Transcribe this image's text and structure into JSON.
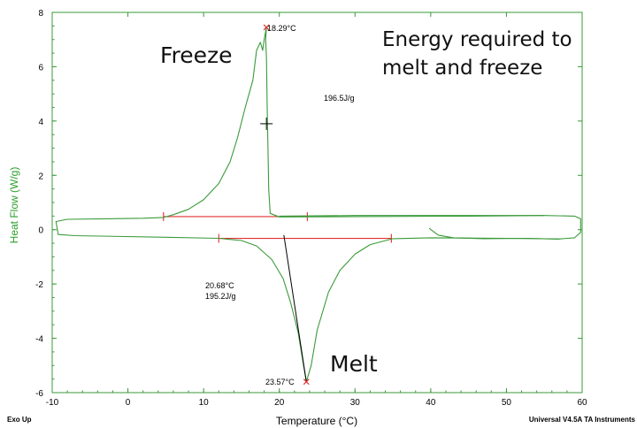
{
  "chart_data": {
    "type": "line",
    "xlabel": "Temperature (°C)",
    "ylabel": "Heat Flow (W/g)",
    "xlim": [
      -10,
      60
    ],
    "ylim": [
      -6,
      8
    ],
    "x_ticks": [
      "-10",
      "0",
      "10",
      "20",
      "30",
      "40",
      "50",
      "60"
    ],
    "y_ticks": [
      "-6",
      "-4",
      "-2",
      "0",
      "2",
      "4",
      "6",
      "8"
    ],
    "grid": false,
    "colors": {
      "curve": "#3a9a3a",
      "axis": "#3a9a3a",
      "baseline": "#e03030",
      "tangent": "#000000"
    },
    "series": [
      {
        "segment": "cooling",
        "x": [
          55,
          45,
          30,
          20,
          18.8,
          18.6,
          18.5,
          18.4,
          18.3,
          18.2,
          18.29,
          18.0,
          17.8,
          17.5,
          17.0,
          16.5,
          15.5,
          14.5,
          13.5,
          12.0,
          10.0,
          8.0,
          6.0,
          4.7,
          2.0,
          -8.0,
          -9.5,
          -9.2,
          -7.0,
          5.0,
          12.0
        ],
        "y": [
          0.52,
          0.5,
          0.48,
          0.47,
          0.6,
          1.5,
          3.0,
          4.5,
          6.3,
          7.0,
          7.45,
          7.0,
          6.6,
          6.9,
          6.6,
          5.5,
          4.5,
          3.4,
          2.5,
          1.7,
          1.1,
          0.75,
          0.55,
          0.45,
          0.42,
          0.38,
          0.3,
          -0.18,
          -0.22,
          -0.28,
          -0.32
        ]
      },
      {
        "segment": "heating",
        "x": [
          12.0,
          15.0,
          17.0,
          19.0,
          20.5,
          21.5,
          22.5,
          23.2,
          23.57,
          24.2,
          25.0,
          26.5,
          28.0,
          30.0,
          32.0,
          35.0,
          40.0,
          50.0,
          57.0,
          59.0,
          59.8,
          59.8,
          59.0,
          55.0,
          45.0,
          30.0,
          20.0
        ],
        "y": [
          -0.32,
          -0.4,
          -0.6,
          -1.1,
          -1.8,
          -2.7,
          -3.8,
          -5.0,
          -5.6,
          -5.0,
          -3.7,
          -2.3,
          -1.5,
          -0.9,
          -0.55,
          -0.33,
          -0.3,
          -0.32,
          -0.34,
          -0.3,
          -0.1,
          0.4,
          0.5,
          0.52,
          0.52,
          0.52,
          0.5
        ]
      },
      {
        "segment": "return-tail",
        "x": [
          39.8,
          41.0,
          43.0,
          47.0,
          53.0,
          57.0
        ],
        "y": [
          0.05,
          -0.2,
          -0.3,
          -0.33,
          -0.32,
          -0.35
        ]
      }
    ],
    "baselines": [
      {
        "x": [
          4.7,
          23.7
        ],
        "y": [
          0.48,
          0.48
        ]
      },
      {
        "x": [
          12.0,
          34.8
        ],
        "y": [
          -0.32,
          -0.32
        ]
      }
    ],
    "tangent_line": {
      "x": [
        20.6,
        23.57
      ],
      "y": [
        -0.2,
        -5.6
      ]
    },
    "cross_marker": {
      "x": 18.3,
      "y": 3.9
    },
    "peak_markers": [
      {
        "x": 18.29,
        "y": 7.45
      },
      {
        "x": 23.57,
        "y": -5.6
      }
    ],
    "annotations": {
      "freeze_peak": "18.29°C",
      "freeze_enthalpy": "196.5J/g",
      "melt_onset": "20.68°C",
      "melt_enthalpy": "195.2J/g",
      "melt_peak": "23.57°C",
      "freeze_label": "Freeze",
      "melt_label": "Melt",
      "energy_line1": "Energy required to",
      "energy_line2": "melt and freeze"
    },
    "footer_left": "Exo Up",
    "footer_right": "Universal V4.5A TA Instruments"
  }
}
